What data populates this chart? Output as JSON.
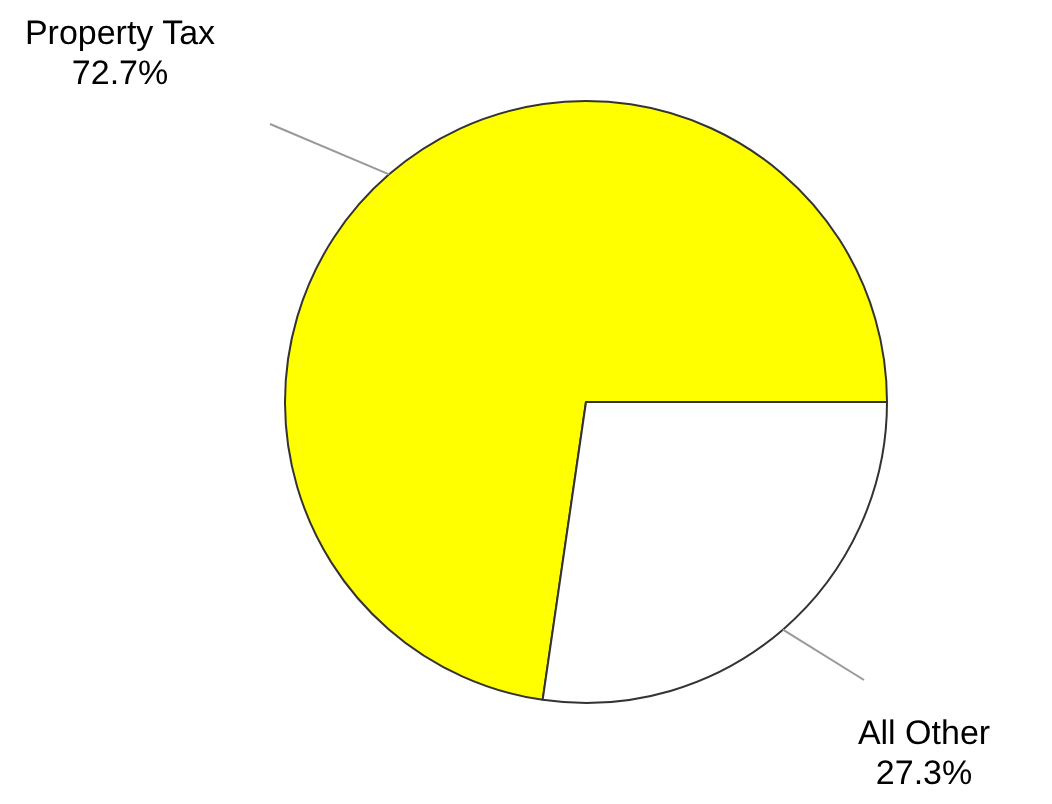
{
  "chart_data": {
    "type": "pie",
    "categories": [
      "Property Tax",
      "All Other"
    ],
    "values": [
      72.7,
      27.3
    ],
    "colors": [
      "#ffff00",
      "#ffffff"
    ],
    "value_labels": [
      "72.7%",
      "27.3%"
    ],
    "legend": false
  }
}
